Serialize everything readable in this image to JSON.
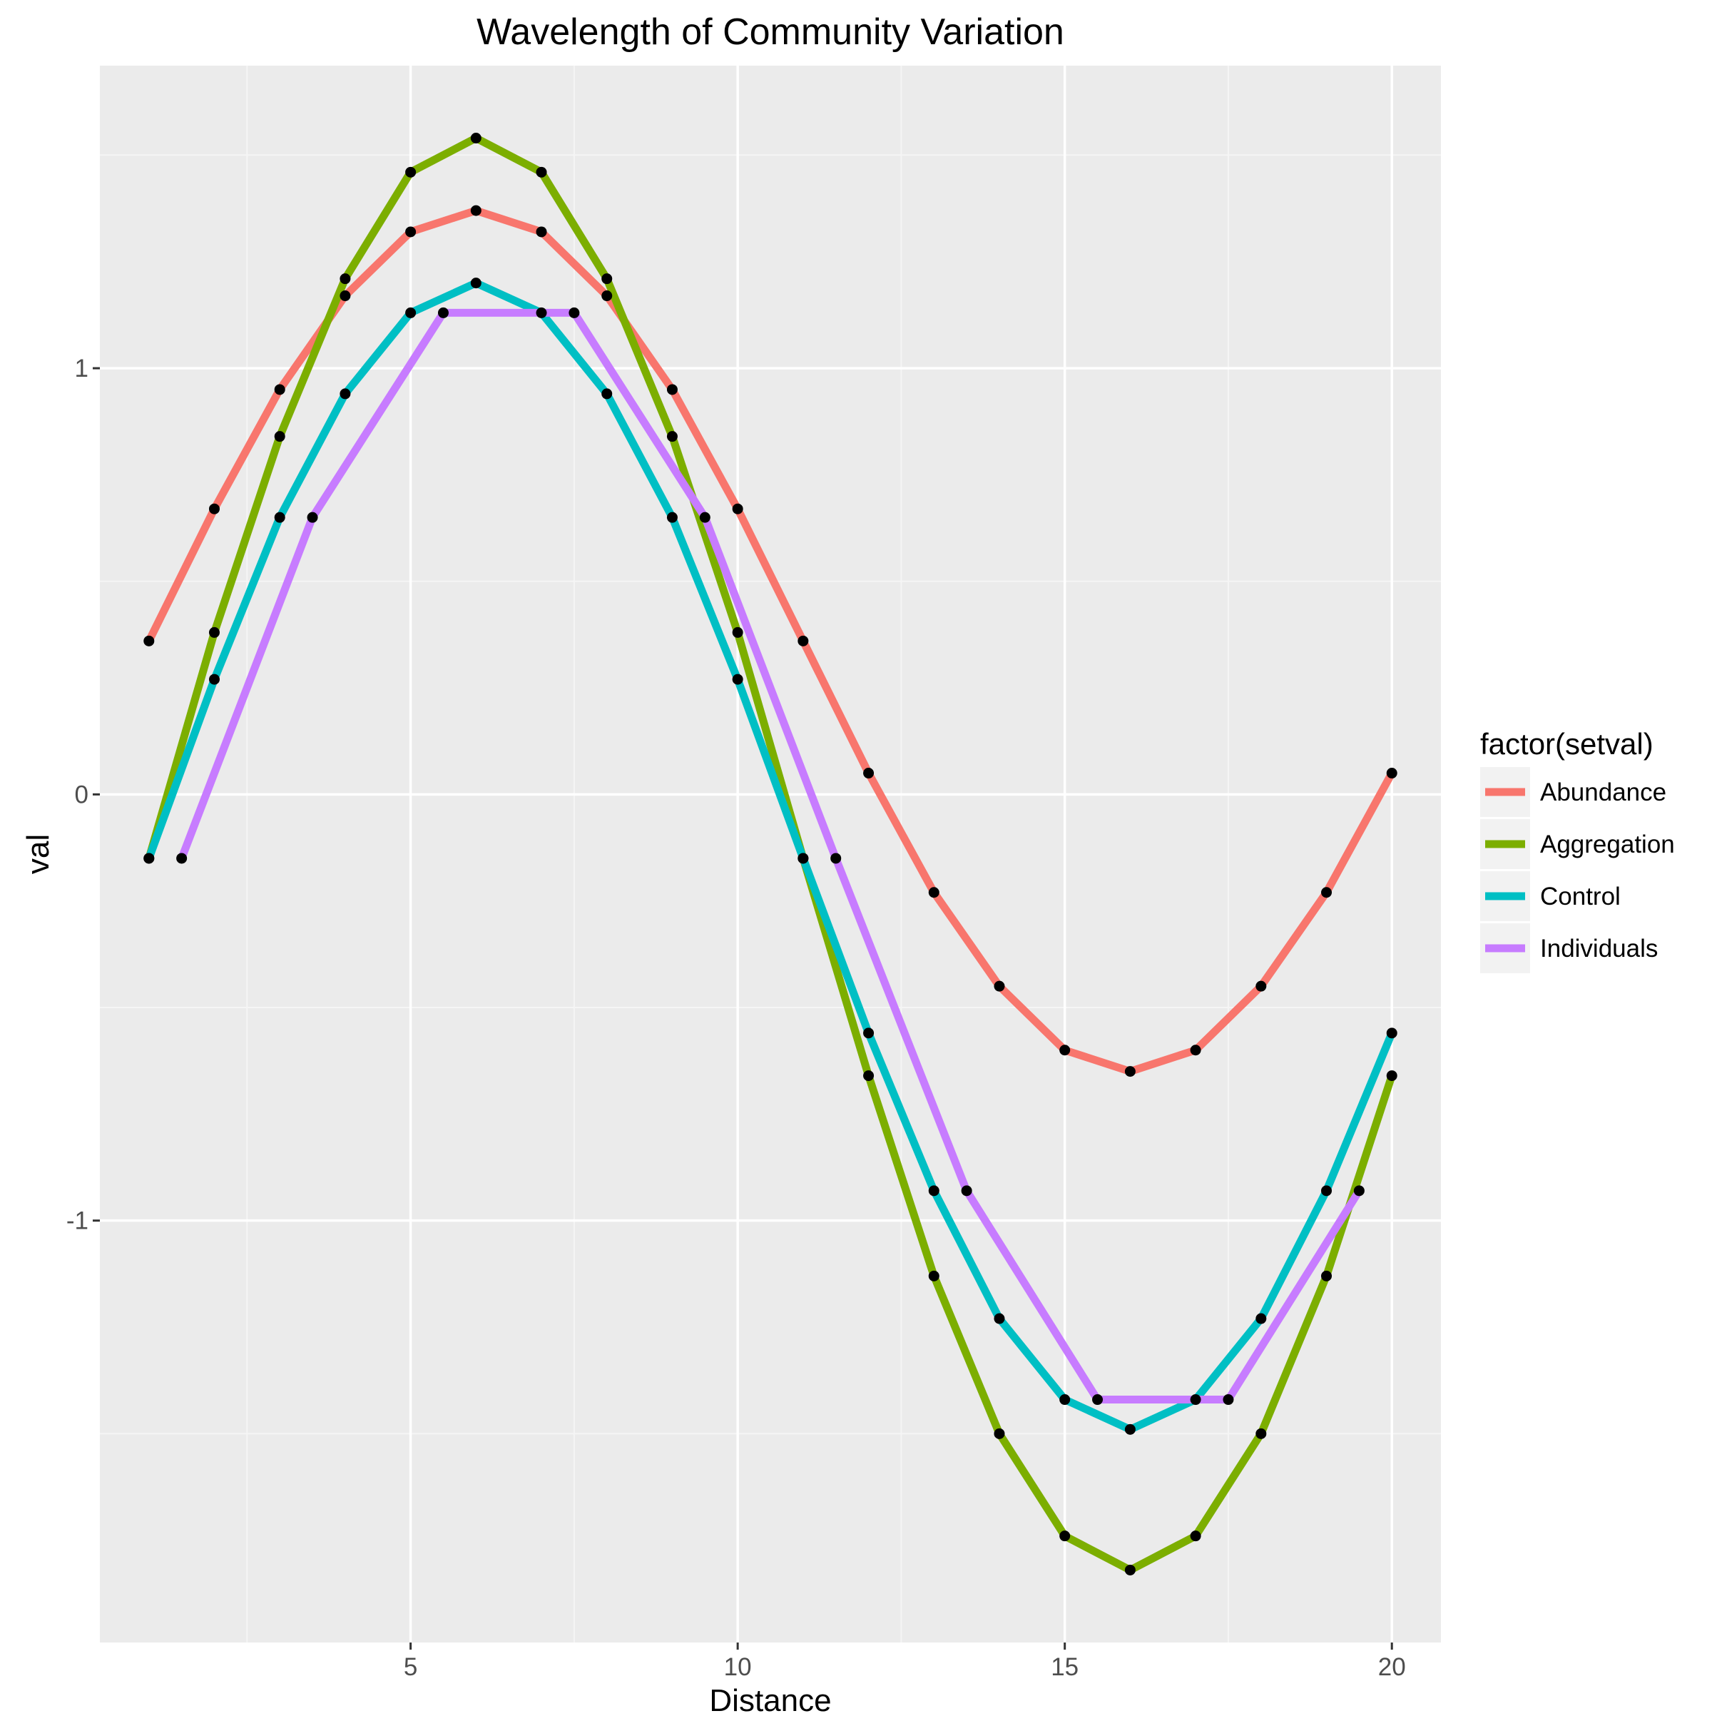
{
  "chart_data": {
    "type": "line",
    "title": "Wavelength of Community Variation",
    "xlabel": "Distance",
    "ylabel": "val",
    "xlim": [
      0.25,
      20.75
    ],
    "ylim": [
      -1.99,
      1.71
    ],
    "x_ticks": [
      5,
      10,
      15,
      20
    ],
    "x_tick_labels": [
      "5",
      "10",
      "15",
      "20"
    ],
    "y_ticks": [
      -1,
      0,
      1
    ],
    "y_tick_labels": [
      "-1",
      "0",
      "1"
    ],
    "grid": true,
    "legend_title": "factor(setval)",
    "legend_position": "right",
    "series": [
      {
        "name": "Abundance",
        "color": "#F8766D",
        "x": [
          1,
          2,
          3,
          4,
          5,
          6,
          7,
          8,
          9,
          10,
          11,
          12,
          13,
          14,
          15,
          16,
          17,
          18,
          19,
          20
        ],
        "y": [
          0.36,
          0.67,
          0.95,
          1.17,
          1.32,
          1.37,
          1.32,
          1.17,
          0.95,
          0.67,
          0.36,
          0.05,
          -0.23,
          -0.45,
          -0.6,
          -0.65,
          -0.6,
          -0.45,
          -0.23,
          0.05
        ]
      },
      {
        "name": "Aggregation",
        "color": "#7CAE00",
        "x": [
          1,
          2,
          3,
          4,
          5,
          6,
          7,
          8,
          9,
          10,
          11,
          12,
          13,
          14,
          15,
          16,
          17,
          18,
          19,
          20
        ],
        "y": [
          -0.15,
          0.38,
          0.84,
          1.21,
          1.46,
          1.54,
          1.46,
          1.21,
          0.84,
          0.38,
          -0.15,
          -0.66,
          -1.13,
          -1.5,
          -1.74,
          -1.82,
          -1.74,
          -1.5,
          -1.13,
          -0.66
        ]
      },
      {
        "name": "Control",
        "color": "#00BFC4",
        "x": [
          1,
          2,
          3,
          4,
          5,
          6,
          7,
          8,
          9,
          10,
          11,
          12,
          13,
          14,
          15,
          16,
          17,
          18,
          19,
          20
        ],
        "y": [
          -0.15,
          0.27,
          0.65,
          0.94,
          1.13,
          1.2,
          1.13,
          0.94,
          0.65,
          0.27,
          -0.15,
          -0.56,
          -0.93,
          -1.23,
          -1.42,
          -1.49,
          -1.42,
          -1.23,
          -0.93,
          -0.56
        ]
      },
      {
        "name": "Individuals",
        "color": "#C77CFF",
        "x": [
          1.5,
          3.5,
          5.5,
          7.5,
          9.5,
          11.5,
          13.5,
          15.5,
          17.5,
          19.5
        ],
        "y": [
          -0.15,
          0.65,
          1.13,
          1.13,
          0.65,
          -0.15,
          -0.93,
          -1.42,
          -1.42,
          -0.93
        ]
      }
    ]
  }
}
